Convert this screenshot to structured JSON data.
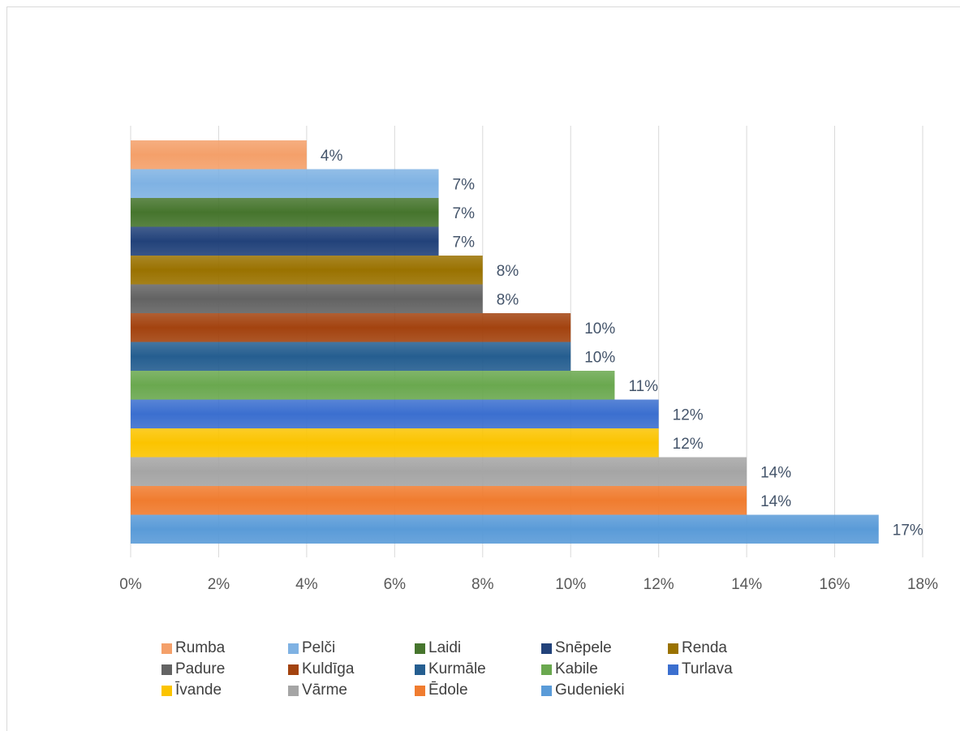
{
  "chart_data": {
    "type": "bar",
    "orientation": "horizontal",
    "title": "",
    "xlabel": "",
    "ylabel": "",
    "xlim": [
      0,
      18
    ],
    "x_ticks": [
      "0%",
      "2%",
      "4%",
      "6%",
      "8%",
      "10%",
      "12%",
      "14%",
      "16%",
      "18%"
    ],
    "grid": true,
    "legend_position": "bottom",
    "categories": [
      "Rumba",
      "Pelči",
      "Laidi",
      "Snēpele",
      "Renda",
      "Padure",
      "Kuldīga",
      "Kurmāle",
      "Kabile",
      "Turlava",
      "Īvande",
      "Vārme",
      "Ēdole",
      "Gudenieki"
    ],
    "values": [
      4,
      7,
      7,
      7,
      8,
      8,
      10,
      10,
      11,
      12,
      12,
      14,
      14,
      17
    ],
    "data_labels": [
      "4%",
      "7%",
      "7%",
      "7%",
      "8%",
      "8%",
      "10%",
      "10%",
      "11%",
      "12%",
      "12%",
      "14%",
      "14%",
      "17%"
    ],
    "colors": [
      "#f4a06a",
      "#7fb2e3",
      "#46752d",
      "#22427a",
      "#9a7200",
      "#636363",
      "#a3430f",
      "#255e90",
      "#6aa84f",
      "#3b6fcf",
      "#fbc400",
      "#a5a5a5",
      "#f07c2f",
      "#5a9bd8"
    ],
    "legend_rows": [
      [
        "Rumba",
        "Pelči",
        "Laidi",
        "Snēpele",
        "Renda"
      ],
      [
        "Padure",
        "Kuldīga",
        "Kurmāle",
        "Kabile",
        "Turlava"
      ],
      [
        "Īvande",
        "Vārme",
        "Ēdole",
        "Gudenieki"
      ]
    ]
  }
}
